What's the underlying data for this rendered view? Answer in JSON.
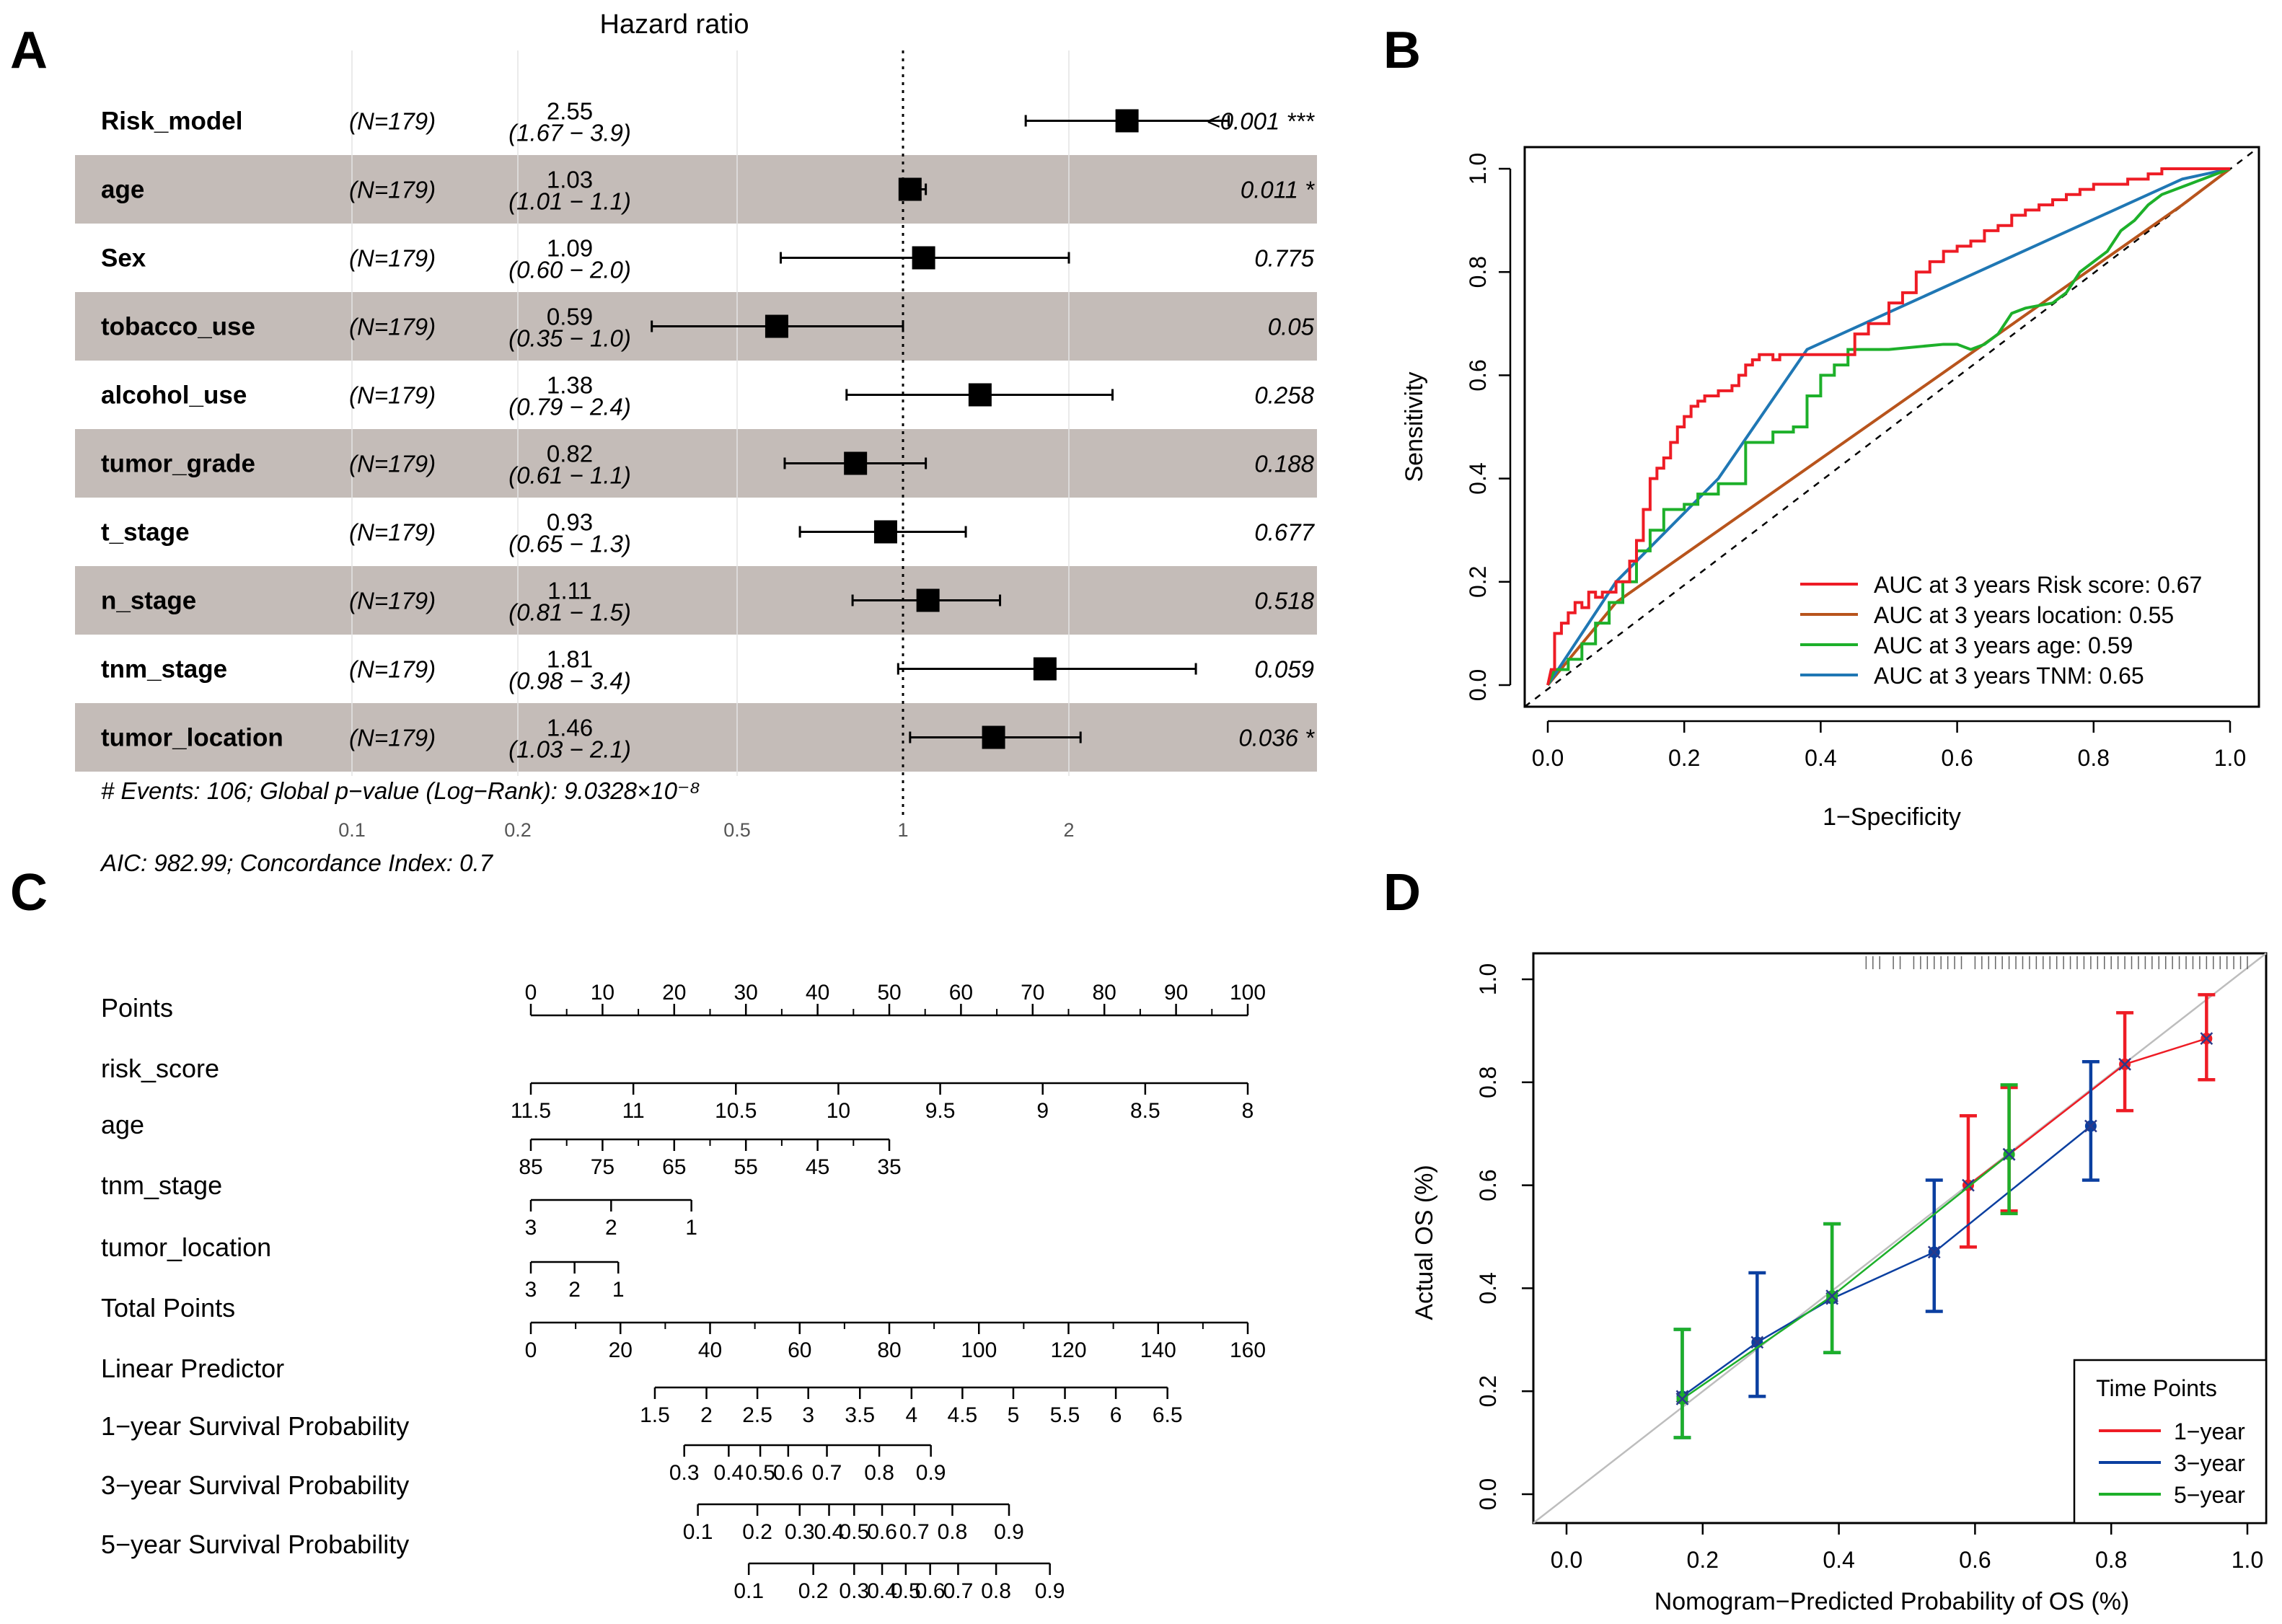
{
  "panel_labels": [
    "A",
    "B",
    "C",
    "D"
  ],
  "chart_data": [
    {
      "panel": "A",
      "type": "forest",
      "title": "Hazard ratio",
      "rows": [
        {
          "variable": "Risk_model",
          "n": "(N=179)",
          "hr": 2.55,
          "hr_label": "2.55",
          "lo": 1.67,
          "hi": 3.9,
          "ci_label": "(1.67 − 3.9)",
          "p": "<0.001 ***",
          "shaded": false
        },
        {
          "variable": "age",
          "n": "(N=179)",
          "hr": 1.03,
          "hr_label": "1.03",
          "lo": 1.01,
          "hi": 1.1,
          "ci_label": "(1.01 − 1.1)",
          "p": "0.011 *",
          "shaded": true
        },
        {
          "variable": "Sex",
          "n": "(N=179)",
          "hr": 1.09,
          "hr_label": "1.09",
          "lo": 0.6,
          "hi": 2.0,
          "ci_label": "(0.60 − 2.0)",
          "p": "0.775",
          "shaded": false
        },
        {
          "variable": "tobacco_use",
          "n": "(N=179)",
          "hr": 0.59,
          "hr_label": "0.59",
          "lo": 0.35,
          "hi": 1.0,
          "ci_label": "(0.35 − 1.0)",
          "p": "0.05",
          "shaded": true
        },
        {
          "variable": "alcohol_use",
          "n": "(N=179)",
          "hr": 1.38,
          "hr_label": "1.38",
          "lo": 0.79,
          "hi": 2.4,
          "ci_label": "(0.79 − 2.4)",
          "p": "0.258",
          "shaded": false
        },
        {
          "variable": "tumor_grade",
          "n": "(N=179)",
          "hr": 0.82,
          "hr_label": "0.82",
          "lo": 0.61,
          "hi": 1.1,
          "ci_label": "(0.61 − 1.1)",
          "p": "0.188",
          "shaded": true
        },
        {
          "variable": "t_stage",
          "n": "(N=179)",
          "hr": 0.93,
          "hr_label": "0.93",
          "lo": 0.65,
          "hi": 1.3,
          "ci_label": "(0.65 − 1.3)",
          "p": "0.677",
          "shaded": false
        },
        {
          "variable": "n_stage",
          "n": "(N=179)",
          "hr": 1.11,
          "hr_label": "1.11",
          "lo": 0.81,
          "hi": 1.5,
          "ci_label": "(0.81 − 1.5)",
          "p": "0.518",
          "shaded": true
        },
        {
          "variable": "tnm_stage",
          "n": "(N=179)",
          "hr": 1.81,
          "hr_label": "1.81",
          "lo": 0.98,
          "hi": 3.4,
          "ci_label": "(0.98 − 3.4)",
          "p": "0.059",
          "shaded": false
        },
        {
          "variable": "tumor_location",
          "n": "(N=179)",
          "hr": 1.46,
          "hr_label": "1.46",
          "lo": 1.03,
          "hi": 2.1,
          "ci_label": "(1.03 − 2.1)",
          "p": "0.036 *",
          "shaded": true
        }
      ],
      "x_ticks": [
        0.1,
        0.2,
        0.5,
        1,
        2
      ],
      "x_tick_labels": [
        "0.1",
        "0.2",
        "0.5",
        "1",
        "2"
      ],
      "x_scale": "log",
      "reference_line": 1,
      "footer_1": "# Events: 106; Global p−value (Log−Rank): 9.0328×10⁻⁸",
      "footer_2": "AIC: 982.99; Concordance Index: 0.7"
    },
    {
      "panel": "B",
      "type": "line",
      "subtype": "roc",
      "xlabel": "1−Specificity",
      "ylabel": "Sensitivity",
      "xlim": [
        0,
        1
      ],
      "ylim": [
        0,
        1
      ],
      "x_ticks": [
        "0.0",
        "0.2",
        "0.4",
        "0.6",
        "0.8",
        "1.0"
      ],
      "y_ticks": [
        "0.0",
        "0.2",
        "0.4",
        "0.6",
        "0.8",
        "1.0"
      ],
      "legend_position": "bottom-right",
      "series": [
        {
          "name": "AUC at 3 years Risk score: 0.67",
          "color": "#ee1c25",
          "x": [
            0,
            0.005,
            0.01,
            0.01,
            0.02,
            0.02,
            0.03,
            0.03,
            0.04,
            0.04,
            0.05,
            0.05,
            0.06,
            0.06,
            0.07,
            0.07,
            0.08,
            0.08,
            0.1,
            0.1,
            0.12,
            0.12,
            0.13,
            0.13,
            0.14,
            0.14,
            0.15,
            0.15,
            0.16,
            0.16,
            0.17,
            0.17,
            0.18,
            0.18,
            0.19,
            0.19,
            0.2,
            0.2,
            0.21,
            0.21,
            0.22,
            0.22,
            0.23,
            0.23,
            0.25,
            0.25,
            0.27,
            0.27,
            0.28,
            0.28,
            0.29,
            0.29,
            0.3,
            0.3,
            0.31,
            0.31,
            0.33,
            0.33,
            0.34,
            0.34,
            0.37,
            0.37,
            0.4,
            0.4,
            0.45,
            0.45,
            0.47,
            0.47,
            0.5,
            0.5,
            0.52,
            0.52,
            0.54,
            0.54,
            0.56,
            0.56,
            0.58,
            0.58,
            0.6,
            0.6,
            0.62,
            0.62,
            0.64,
            0.64,
            0.66,
            0.66,
            0.68,
            0.68,
            0.7,
            0.7,
            0.72,
            0.72,
            0.74,
            0.74,
            0.76,
            0.76,
            0.78,
            0.78,
            0.8,
            0.8,
            0.85,
            0.85,
            0.88,
            0.88,
            0.9,
            0.9,
            0.93,
            0.93,
            1.0
          ],
          "y": [
            0,
            0.03,
            0.03,
            0.1,
            0.1,
            0.12,
            0.12,
            0.14,
            0.14,
            0.16,
            0.16,
            0.15,
            0.15,
            0.18,
            0.18,
            0.17,
            0.17,
            0.18,
            0.18,
            0.2,
            0.2,
            0.24,
            0.24,
            0.28,
            0.28,
            0.34,
            0.34,
            0.4,
            0.4,
            0.42,
            0.42,
            0.44,
            0.44,
            0.47,
            0.47,
            0.5,
            0.5,
            0.52,
            0.52,
            0.54,
            0.54,
            0.55,
            0.55,
            0.56,
            0.56,
            0.57,
            0.57,
            0.58,
            0.58,
            0.6,
            0.6,
            0.62,
            0.62,
            0.63,
            0.63,
            0.64,
            0.64,
            0.63,
            0.63,
            0.64,
            0.64,
            0.64,
            0.64,
            0.64,
            0.64,
            0.68,
            0.68,
            0.7,
            0.7,
            0.74,
            0.74,
            0.76,
            0.76,
            0.8,
            0.8,
            0.82,
            0.82,
            0.84,
            0.84,
            0.85,
            0.85,
            0.86,
            0.86,
            0.88,
            0.88,
            0.89,
            0.89,
            0.91,
            0.91,
            0.92,
            0.92,
            0.93,
            0.93,
            0.94,
            0.94,
            0.95,
            0.95,
            0.96,
            0.96,
            0.97,
            0.97,
            0.98,
            0.98,
            0.99,
            0.99,
            1.0,
            1.0,
            1.0,
            1.0
          ]
        },
        {
          "name": "AUC at 3 years location: 0.55",
          "color": "#b8541c",
          "x": [
            0,
            0.1,
            0.93,
            1.0
          ],
          "y": [
            0,
            0.16,
            0.93,
            1.0
          ]
        },
        {
          "name": "AUC at 3 years age: 0.59",
          "color": "#1db02a",
          "x": [
            0,
            0.01,
            0.01,
            0.03,
            0.03,
            0.05,
            0.05,
            0.07,
            0.07,
            0.09,
            0.09,
            0.11,
            0.11,
            0.13,
            0.13,
            0.15,
            0.15,
            0.17,
            0.17,
            0.2,
            0.2,
            0.22,
            0.22,
            0.25,
            0.25,
            0.29,
            0.29,
            0.33,
            0.33,
            0.36,
            0.36,
            0.38,
            0.38,
            0.4,
            0.4,
            0.42,
            0.42,
            0.44,
            0.44,
            0.5,
            0.58,
            0.6,
            0.62,
            0.64,
            0.66,
            0.68,
            0.7,
            0.74,
            0.76,
            0.78,
            0.8,
            0.82,
            0.84,
            0.86,
            0.88,
            0.9,
            0.92,
            0.94,
            0.96,
            0.98,
            1.0
          ],
          "y": [
            0,
            0.03,
            0.03,
            0.03,
            0.05,
            0.05,
            0.08,
            0.08,
            0.12,
            0.12,
            0.16,
            0.16,
            0.2,
            0.2,
            0.26,
            0.26,
            0.3,
            0.3,
            0.34,
            0.34,
            0.35,
            0.35,
            0.37,
            0.37,
            0.39,
            0.39,
            0.47,
            0.47,
            0.49,
            0.49,
            0.5,
            0.5,
            0.56,
            0.56,
            0.6,
            0.6,
            0.62,
            0.62,
            0.65,
            0.65,
            0.66,
            0.66,
            0.65,
            0.66,
            0.68,
            0.72,
            0.73,
            0.74,
            0.76,
            0.8,
            0.82,
            0.84,
            0.88,
            0.9,
            0.93,
            0.95,
            0.96,
            0.97,
            0.98,
            0.99,
            1.0
          ]
        },
        {
          "name": "AUC at 3 years TNM: 0.65",
          "color": "#1f77b4",
          "x": [
            0,
            0.1,
            0.25,
            0.38,
            0.93,
            1.0
          ],
          "y": [
            0,
            0.2,
            0.4,
            0.65,
            0.98,
            1.0
          ]
        }
      ]
    },
    {
      "panel": "C",
      "type": "nomogram",
      "rows": [
        {
          "label": "Points",
          "ticks": [
            "0",
            "10",
            "20",
            "30",
            "40",
            "50",
            "60",
            "70",
            "80",
            "90",
            "100"
          ],
          "pos": [
            0,
            10,
            20,
            30,
            40,
            50,
            60,
            70,
            80,
            90,
            100
          ],
          "minor": [
            5,
            15,
            25,
            35,
            45,
            55,
            65,
            75,
            85,
            95
          ],
          "labels_above": true
        },
        {
          "label": "risk_score",
          "ticks": [
            "11.5",
            "11",
            "10.5",
            "10",
            "9.5",
            "9",
            "8.5",
            "8"
          ],
          "pos": [
            0,
            14.3,
            28.6,
            42.9,
            57.1,
            71.4,
            85.7,
            100
          ],
          "minor": [],
          "labels_above": false
        },
        {
          "label": "age",
          "ticks": [
            "85",
            "75",
            "65",
            "55",
            "45",
            "35"
          ],
          "pos": [
            0,
            10,
            20,
            30,
            40,
            50
          ],
          "minor": [
            5,
            15,
            25,
            35,
            45
          ],
          "labels_above": false
        },
        {
          "label": "tnm_stage",
          "ticks": [
            "3",
            "2",
            "1"
          ],
          "pos": [
            0,
            11.2,
            22.4
          ],
          "minor": [],
          "labels_above": false
        },
        {
          "label": "tumor_location",
          "ticks": [
            "3",
            "2",
            "1"
          ],
          "pos": [
            0,
            6.1,
            12.2
          ],
          "minor": [],
          "labels_above": false
        },
        {
          "label": "Total Points",
          "ticks": [
            "0",
            "20",
            "40",
            "60",
            "80",
            "100",
            "120",
            "140",
            "160"
          ],
          "pos": [
            0,
            12.5,
            25,
            37.5,
            50,
            62.5,
            75,
            87.5,
            100
          ],
          "minor": [
            6.25,
            18.75,
            31.25,
            43.75,
            56.25,
            68.75,
            81.25,
            93.75
          ],
          "labels_above": false
        },
        {
          "label": "Linear Predictor",
          "ticks": [
            "1.5",
            "2",
            "2.5",
            "3",
            "3.5",
            "4",
            "4.5",
            "5",
            "5.5",
            "6",
            "6.5"
          ],
          "pos": [
            17.3,
            24.5,
            31.6,
            38.7,
            45.9,
            53.1,
            60.2,
            67.3,
            74.5,
            81.6,
            88.8
          ],
          "minor": [],
          "labels_above": false
        },
        {
          "label": "1−year Survival Probability",
          "ticks": [
            "0.3",
            "0.4",
            "0.5",
            "0.6",
            "0.7",
            "0.8",
            "0.9"
          ],
          "pos": [
            21.4,
            27.6,
            32.0,
            35.9,
            41.3,
            48.6,
            55.8
          ],
          "minor": [],
          "labels_above": false
        },
        {
          "label": "3−year Survival Probability",
          "ticks": [
            "0.1",
            "0.2",
            "0.3",
            "0.4",
            "0.5",
            "0.6",
            "0.7",
            "0.8",
            "0.9"
          ],
          "pos": [
            23.3,
            31.6,
            37.5,
            41.6,
            45.1,
            49.0,
            53.5,
            58.8,
            66.7
          ],
          "minor": [],
          "labels_above": false
        },
        {
          "label": "5−year Survival Probability",
          "ticks": [
            "0.1",
            "0.2",
            "0.3",
            "0.4",
            "0.5",
            "0.6",
            "0.7",
            "0.8",
            "0.9"
          ],
          "pos": [
            30.4,
            39.4,
            45.1,
            49.0,
            52.3,
            55.7,
            59.6,
            64.9,
            72.4
          ],
          "minor": [],
          "labels_above": false
        }
      ]
    },
    {
      "panel": "D",
      "type": "line",
      "subtype": "calibration",
      "xlabel": "Nomogram−Predicted Probability of OS (%)",
      "ylabel": "Actual OS (%)",
      "xlim": [
        0,
        1
      ],
      "ylim": [
        0,
        1
      ],
      "x_ticks": [
        "0.0",
        "0.2",
        "0.4",
        "0.6",
        "0.8",
        "1.0"
      ],
      "y_ticks": [
        "0.0",
        "0.2",
        "0.4",
        "0.6",
        "0.8",
        "1.0"
      ],
      "legend_title": "Time Points",
      "legend_position": "bottom-right",
      "series": [
        {
          "name": "1−year",
          "color": "#ee1c25",
          "x": [
            0.59,
            0.65,
            0.82,
            0.94
          ],
          "y": [
            0.6,
            0.66,
            0.835,
            0.885
          ],
          "lo": [
            0.48,
            0.55,
            0.745,
            0.805
          ],
          "hi": [
            0.735,
            0.79,
            0.935,
            0.97
          ]
        },
        {
          "name": "3−year",
          "color": "#0b3fa0",
          "x": [
            0.17,
            0.28,
            0.39,
            0.54,
            0.77
          ],
          "y": [
            0.19,
            0.295,
            0.38,
            0.47,
            0.715
          ],
          "lo": [
            0.11,
            0.19,
            0.275,
            0.355,
            0.61
          ],
          "hi": [
            0.32,
            0.43,
            0.525,
            0.61,
            0.84
          ]
        },
        {
          "name": "5−year",
          "color": "#1db02a",
          "x": [
            0.17,
            0.39,
            0.65
          ],
          "y": [
            0.185,
            0.385,
            0.66
          ],
          "lo": [
            0.11,
            0.275,
            0.545
          ],
          "hi": [
            0.32,
            0.525,
            0.795
          ]
        }
      ],
      "rug": [
        0.44,
        0.45,
        0.46,
        0.48,
        0.49,
        0.51,
        0.52,
        0.53,
        0.54,
        0.55,
        0.56,
        0.57,
        0.58,
        0.6,
        0.61,
        0.62,
        0.63,
        0.64,
        0.65,
        0.66,
        0.67,
        0.68,
        0.69,
        0.7,
        0.71,
        0.72,
        0.73,
        0.74,
        0.75,
        0.76,
        0.77,
        0.78,
        0.79,
        0.8,
        0.81,
        0.82,
        0.83,
        0.84,
        0.85,
        0.86,
        0.87,
        0.88,
        0.89,
        0.9,
        0.91,
        0.92,
        0.93,
        0.94,
        0.95,
        0.96,
        0.97,
        0.98,
        0.99,
        1.0
      ]
    }
  ]
}
